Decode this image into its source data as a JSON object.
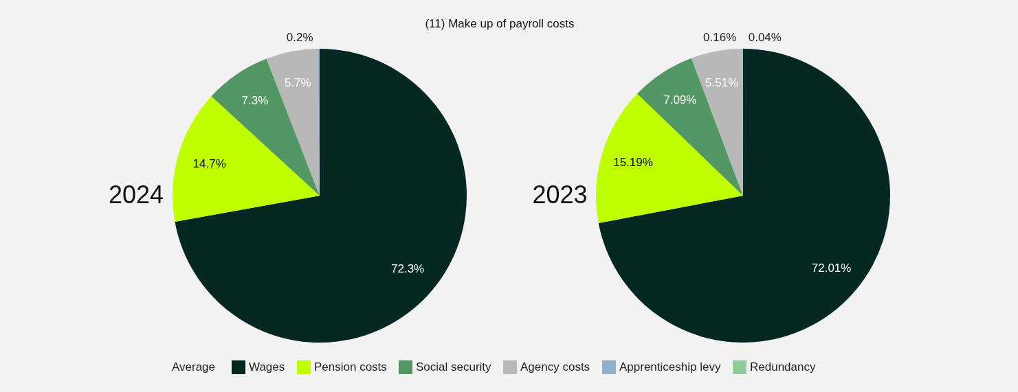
{
  "chart_data": {
    "type": "pie",
    "title": "(11) Make up of payroll costs",
    "legend": "bottom",
    "legend_title": "Average",
    "categories": [
      "Wages",
      "Pension costs",
      "Social security",
      "Agency costs",
      "Apprenticeship levy",
      "Redundancy"
    ],
    "colors": [
      "#062823",
      "#bfff00",
      "#529764",
      "#b8b8b8",
      "#8eb0cb",
      "#8fcb9b"
    ],
    "series": [
      {
        "name": "2024",
        "values": [
          72.3,
          14.7,
          7.3,
          5.7,
          0.2,
          null
        ],
        "value_labels": [
          "72.3%",
          "14.7%",
          "7.3%",
          "5.7%",
          "0.2%",
          null
        ]
      },
      {
        "name": "2023",
        "values": [
          72.01,
          15.19,
          7.09,
          5.51,
          0.16,
          0.04
        ],
        "value_labels": [
          "72.01%",
          "15.19%",
          "7.09%",
          "5.51%",
          "0.16%",
          "0.04%"
        ]
      }
    ]
  }
}
